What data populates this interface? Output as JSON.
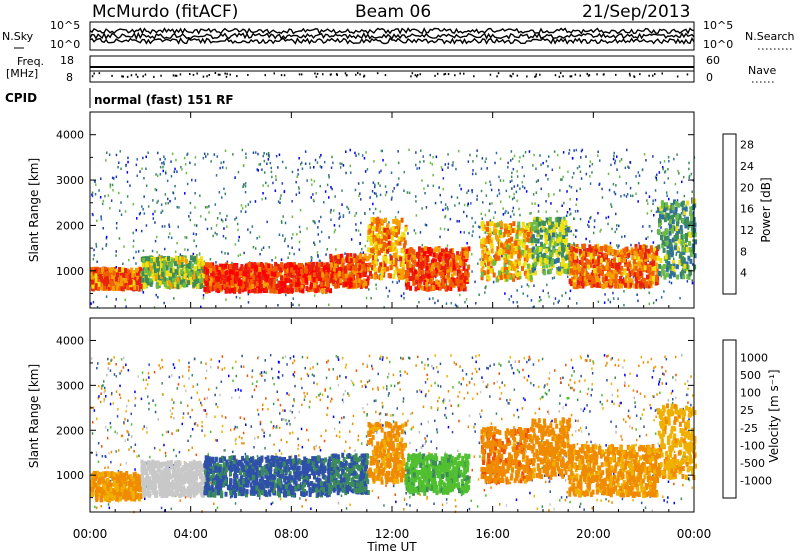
{
  "header": {
    "station": "McMurdo (fitACF)",
    "beam": "Beam 06",
    "date": "21/Sep/2013"
  },
  "strips": {
    "nsky_label": "N.Sky",
    "nsearch_label": "N.Search",
    "freq_label_line1": "Freq.",
    "freq_label_line2": "[MHz]",
    "nave_label": "Nave",
    "cpid_label": "CPID",
    "cpid_value": "normal (fast) 151 RF",
    "noise_ticks": [
      "10^5",
      "10^0"
    ],
    "freq_ticks": [
      "18",
      "8"
    ],
    "nave_ticks": [
      "60",
      "0"
    ]
  },
  "x_axis": {
    "label": "Time UT",
    "ticks": [
      "00:00",
      "04:00",
      "08:00",
      "12:00",
      "16:00",
      "20:00",
      "00:00"
    ],
    "range_hours": [
      0,
      24
    ]
  },
  "colors": {
    "power": [
      "#0000ff",
      "#1f3fb0",
      "#2e6f9e",
      "#3d8c5a",
      "#6cbc46",
      "#f0e010",
      "#f6a000",
      "#f06000",
      "#e82010",
      "#ff0000"
    ],
    "velocity": [
      "#ff0000",
      "#f05000",
      "#f08a00",
      "#f0b000",
      "#c8c8c8",
      "#b8b8b8",
      "#50c030",
      "#3c8c5a",
      "#2e50a8",
      "#0000ff"
    ]
  },
  "chart_data": [
    {
      "type": "heatmap",
      "name": "power",
      "ylabel": "Slant Range [km]",
      "yticks": [
        1000,
        2000,
        3000,
        4000
      ],
      "ylim": [
        180,
        4500
      ],
      "xlim": [
        0,
        24
      ],
      "colorbar_label": "Power [dB]",
      "colorbar_ticks": [
        4,
        8,
        12,
        16,
        20,
        24,
        28
      ],
      "colorbar_range": [
        0,
        30
      ],
      "bands": [
        {
          "t0": 0.0,
          "t1": 2.0,
          "r0": 650,
          "r1": 1100,
          "v": 22
        },
        {
          "t0": 2.0,
          "t1": 4.5,
          "r0": 700,
          "r1": 1350,
          "v": 14
        },
        {
          "t0": 4.5,
          "t1": 9.5,
          "r0": 600,
          "r1": 1200,
          "v": 25
        },
        {
          "t0": 9.5,
          "t1": 11.0,
          "r0": 700,
          "r1": 1400,
          "v": 23
        },
        {
          "t0": 11.0,
          "t1": 12.5,
          "r0": 900,
          "r1": 2200,
          "v": 20
        },
        {
          "t0": 12.5,
          "t1": 15.0,
          "r0": 650,
          "r1": 1550,
          "v": 24
        },
        {
          "t0": 15.5,
          "t1": 17.5,
          "r0": 850,
          "r1": 2100,
          "v": 19
        },
        {
          "t0": 17.5,
          "t1": 19.0,
          "r0": 1000,
          "r1": 2200,
          "v": 13
        },
        {
          "t0": 19.0,
          "t1": 22.5,
          "r0": 700,
          "r1": 1600,
          "v": 22
        },
        {
          "t0": 22.5,
          "t1": 24.0,
          "r0": 900,
          "r1": 2600,
          "v": 11
        }
      ]
    },
    {
      "type": "heatmap",
      "name": "velocity",
      "ylabel": "Slant Range [km]",
      "yticks": [
        1000,
        2000,
        3000,
        4000
      ],
      "ylim": [
        180,
        4500
      ],
      "xlim": [
        0,
        24
      ],
      "colorbar_label": "Velocity [m s⁻¹]",
      "colorbar_ticks": [
        -1000,
        -500,
        -100,
        -25,
        25,
        100,
        500,
        1000
      ],
      "bands": [
        {
          "t0": 0.0,
          "t1": 2.0,
          "r0": 500,
          "r1": 1100,
          "v": -300
        },
        {
          "t0": 2.0,
          "t1": 4.5,
          "r0": 600,
          "r1": 1350,
          "v": -50
        },
        {
          "t0": 4.5,
          "t1": 9.5,
          "r0": 600,
          "r1": 1450,
          "v": 300
        },
        {
          "t0": 9.5,
          "t1": 11.0,
          "r0": 650,
          "r1": 1500,
          "v": 250
        },
        {
          "t0": 11.0,
          "t1": 12.5,
          "r0": 900,
          "r1": 2200,
          "v": -300
        },
        {
          "t0": 12.5,
          "t1": 15.0,
          "r0": 650,
          "r1": 1500,
          "v": 80
        },
        {
          "t0": 15.5,
          "t1": 17.5,
          "r0": 900,
          "r1": 2100,
          "v": -400
        },
        {
          "t0": 17.5,
          "t1": 19.0,
          "r0": 1000,
          "r1": 2300,
          "v": -350
        },
        {
          "t0": 19.0,
          "t1": 22.5,
          "r0": 600,
          "r1": 1700,
          "v": -300
        },
        {
          "t0": 22.5,
          "t1": 24.0,
          "r0": 1000,
          "r1": 2600,
          "v": -200
        }
      ]
    }
  ]
}
